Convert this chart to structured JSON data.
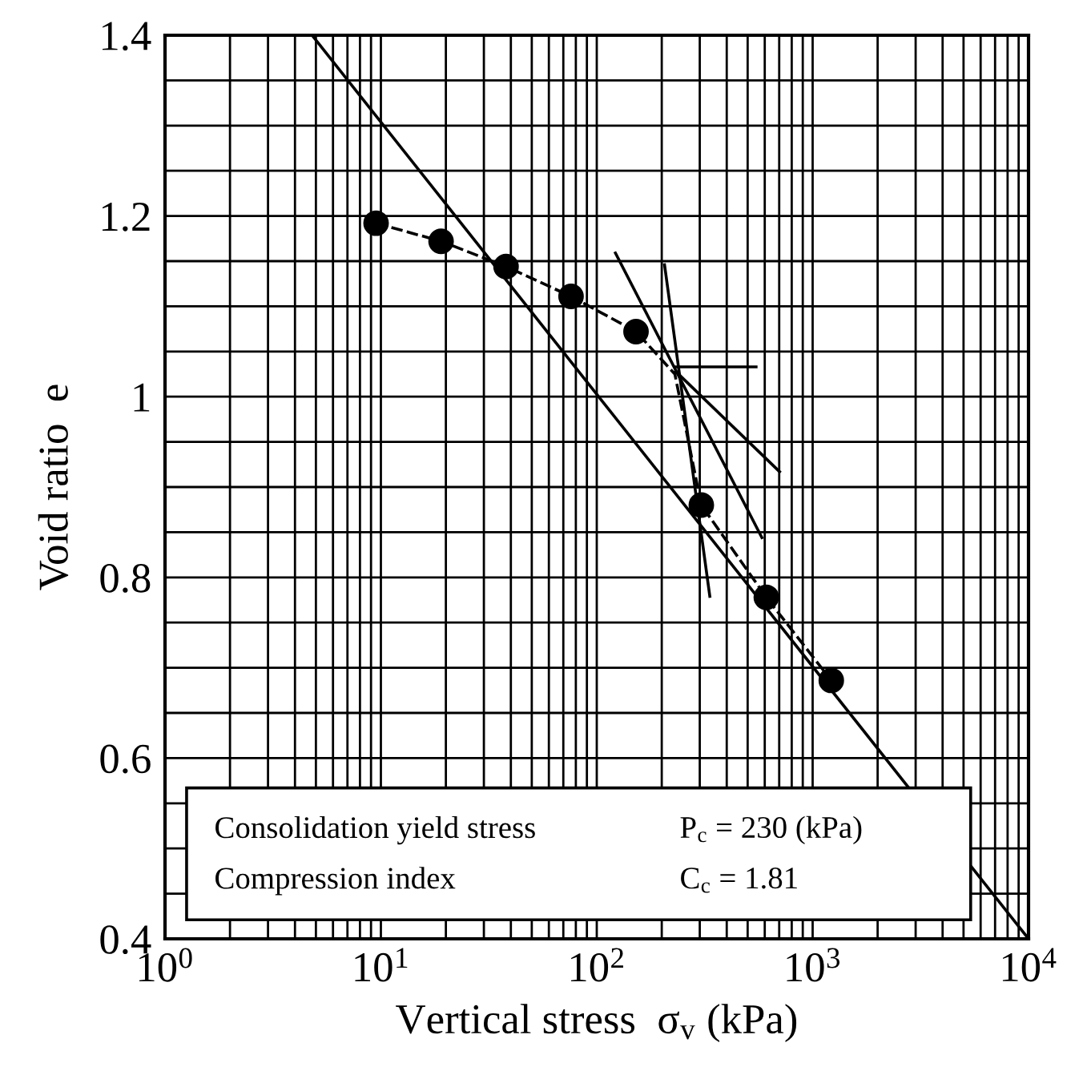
{
  "chart_data": {
    "type": "line",
    "xlabel": "Vertical stress  σ$_{v}$ (kPa)",
    "ylabel": "Void ratio  e",
    "log": "x",
    "xlim": [
      1,
      10000
    ],
    "ylim": [
      0.4,
      1.4
    ],
    "xticks": [
      {
        "value": 1,
        "label": "10$^{0}$"
      },
      {
        "value": 10,
        "label": "10$^{1}$"
      },
      {
        "value": 100,
        "label": "10$^{2}$"
      },
      {
        "value": 1000,
        "label": "10$^{3}$"
      },
      {
        "value": 10000,
        "label": "10$^{4}$"
      }
    ],
    "yticks": [
      0.4,
      0.6,
      0.8,
      1,
      1.2,
      1.4
    ],
    "grid": true,
    "legend": false,
    "series": [
      {
        "type": "scatter",
        "color": "#000000",
        "marker": "circle",
        "x": [
          9.5,
          19,
          38,
          76,
          152,
          305,
          610,
          1220
        ],
        "values": [
          1.192,
          1.172,
          1.144,
          1.111,
          1.072,
          0.88,
          0.778,
          0.686
        ]
      },
      {
        "color": "#000000",
        "line_style": "dashed",
        "marker": "none",
        "x": [
          9.5,
          19,
          38,
          76,
          152,
          230,
          305,
          610,
          1220
        ],
        "values": [
          1.192,
          1.172,
          1.144,
          1.111,
          1.072,
          1.025,
          0.88,
          0.778,
          0.686
        ]
      },
      {
        "color": "#000000",
        "marker": "none",
        "x": [
          4.8,
          10000
        ],
        "values": [
          1.4,
          0.4
        ]
      },
      {
        "color": "#000000",
        "marker": "none",
        "x": [
          122,
          582
        ],
        "values": [
          1.159,
          0.844
        ]
      },
      {
        "color": "#000000",
        "marker": "none",
        "x": [
          206,
          334
        ],
        "values": [
          1.146,
          0.779
        ]
      },
      {
        "color": "#000000",
        "marker": "none",
        "x": [
          232,
          547
        ],
        "values": [
          1.033,
          1.033
        ]
      },
      {
        "color": "#000000",
        "marker": "none",
        "x": [
          232,
          703
        ],
        "values": [
          1.028,
          0.917
        ]
      }
    ],
    "annotations": [
      "Consolidation yield stress  P$_{c}$ = 230 (kPa)",
      "Compression index  C$_{c}$ = 1.81"
    ]
  }
}
